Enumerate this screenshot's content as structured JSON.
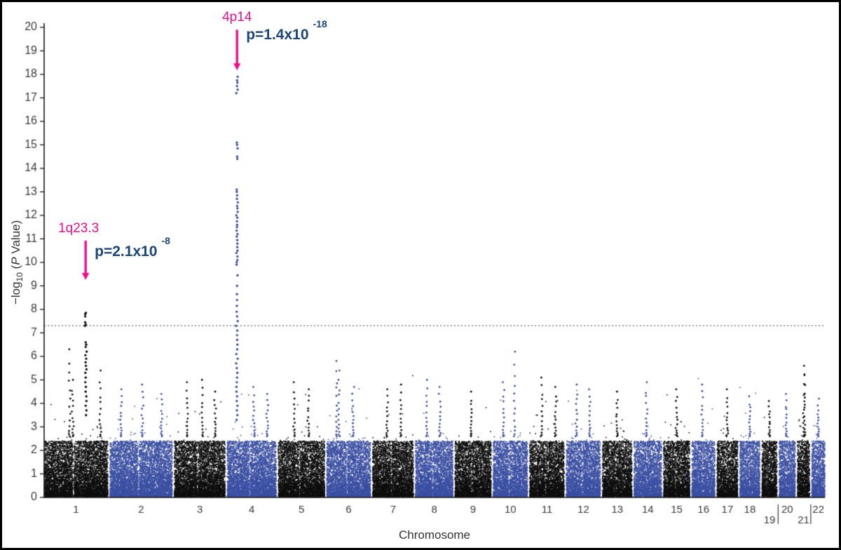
{
  "axes": {
    "x_title": "Chromosome",
    "y_title_parts": {
      "prefix": "−log",
      "sub": "10",
      "mid": " (",
      "italic": "P",
      "suffix": " Value)"
    }
  },
  "annotations": [
    {
      "locus": "4p14",
      "p_base": "p=1.4x10",
      "p_exponent": "-18"
    },
    {
      "locus": "1q23.3",
      "p_base": "p=2.1x10",
      "p_exponent": "-8"
    }
  ],
  "colors": {
    "odd_chr": "#0e0e0e",
    "even_chr": "#3b4fa2",
    "highlight": "#ec108f",
    "pvalue_text": "#1c4577",
    "axis_text": "#3a3a3a",
    "axis_line": "#1a1a1a",
    "threshold_line": "#6a6a6a",
    "background": "#ffffff",
    "frame": "#000000"
  },
  "chart_data": {
    "type": "scatter",
    "title": "",
    "xlabel": "Chromosome",
    "ylabel": "-log10 (P Value)",
    "ylim": [
      0,
      20
    ],
    "y_ticks": [
      0,
      1,
      2,
      3,
      4,
      5,
      6,
      7,
      8,
      9,
      10,
      11,
      12,
      13,
      14,
      15,
      16,
      17,
      18,
      19,
      20
    ],
    "threshold": 7.3,
    "grid": false,
    "legend": false,
    "chromosomes": [
      {
        "label": "1",
        "size": 249,
        "spikes": [
          [
            0.4,
            6.3
          ],
          [
            0.45,
            5.0
          ],
          [
            0.88,
            5.4
          ]
        ]
      },
      {
        "label": "2",
        "size": 243,
        "spikes": [
          [
            0.18,
            4.6
          ],
          [
            0.52,
            4.8
          ],
          [
            0.83,
            4.4
          ]
        ]
      },
      {
        "label": "3",
        "size": 198,
        "spikes": [
          [
            0.25,
            4.9
          ],
          [
            0.55,
            5.0
          ],
          [
            0.8,
            4.5
          ]
        ]
      },
      {
        "label": "4",
        "size": 191,
        "spikes": [
          [
            0.55,
            4.7
          ],
          [
            0.82,
            4.4
          ]
        ]
      },
      {
        "label": "5",
        "size": 181,
        "spikes": [
          [
            0.35,
            4.9
          ],
          [
            0.65,
            4.6
          ]
        ]
      },
      {
        "label": "6",
        "size": 171,
        "spikes": [
          [
            0.22,
            5.8
          ],
          [
            0.28,
            5.4
          ],
          [
            0.6,
            4.7
          ]
        ]
      },
      {
        "label": "7",
        "size": 159,
        "spikes": [
          [
            0.35,
            4.6
          ],
          [
            0.7,
            4.8
          ]
        ]
      },
      {
        "label": "8",
        "size": 146,
        "spikes": [
          [
            0.3,
            5.0
          ],
          [
            0.65,
            4.7
          ]
        ]
      },
      {
        "label": "9",
        "size": 141,
        "spikes": [
          [
            0.45,
            4.5
          ]
        ]
      },
      {
        "label": "10",
        "size": 134,
        "spikes": [
          [
            0.3,
            4.9
          ],
          [
            0.62,
            6.2
          ]
        ]
      },
      {
        "label": "11",
        "size": 135,
        "spikes": [
          [
            0.35,
            5.1
          ],
          [
            0.75,
            4.7
          ]
        ]
      },
      {
        "label": "12",
        "size": 133,
        "spikes": [
          [
            0.3,
            4.8
          ],
          [
            0.68,
            4.6
          ]
        ]
      },
      {
        "label": "13",
        "size": 115,
        "spikes": [
          [
            0.5,
            4.5
          ]
        ]
      },
      {
        "label": "14",
        "size": 107,
        "spikes": [
          [
            0.45,
            4.9
          ]
        ]
      },
      {
        "label": "15",
        "size": 102,
        "spikes": [
          [
            0.5,
            4.6
          ]
        ]
      },
      {
        "label": "16",
        "size": 90,
        "spikes": [
          [
            0.45,
            4.8
          ]
        ]
      },
      {
        "label": "17",
        "size": 81,
        "spikes": [
          [
            0.5,
            4.6
          ]
        ]
      },
      {
        "label": "18",
        "size": 78,
        "spikes": [
          [
            0.5,
            4.3
          ]
        ]
      },
      {
        "label": "19",
        "size": 59,
        "spikes": [
          [
            0.5,
            4.1
          ]
        ]
      },
      {
        "label": "20",
        "size": 63,
        "spikes": [
          [
            0.45,
            4.4
          ]
        ]
      },
      {
        "label": "21",
        "size": 48,
        "spikes": [
          [
            0.5,
            5.6
          ],
          [
            0.6,
            5.2
          ]
        ]
      },
      {
        "label": "22",
        "size": 51,
        "spikes": [
          [
            0.5,
            4.2
          ]
        ]
      }
    ],
    "top_hits": [
      {
        "chr": 4,
        "fraction": 0.2,
        "locus": "4p14",
        "p_value": "1.4x10-18",
        "points": [
          17.9,
          17.75,
          17.65,
          17.5,
          17.35,
          17.2,
          15.1,
          15.0,
          14.85,
          14.5,
          14.4,
          13.1,
          13.0,
          12.85,
          12.7,
          12.55,
          12.4,
          12.3,
          12.15,
          12.0,
          11.9,
          11.75,
          11.6,
          11.5,
          11.35,
          11.2,
          11.1,
          10.95,
          10.8,
          10.65,
          10.5,
          10.4,
          10.25,
          10.1,
          10.0,
          9.9,
          9.45,
          9.0,
          8.65,
          8.4,
          8.15,
          7.9,
          7.7,
          7.5,
          7.3,
          7.1,
          6.9,
          6.7,
          6.5,
          6.3,
          6.1,
          5.9,
          5.7,
          5.5,
          5.3,
          5.1,
          4.9,
          4.7,
          4.5,
          4.3,
          4.1,
          3.9,
          3.7,
          3.5,
          3.3
        ]
      },
      {
        "chr": 1,
        "fraction": 0.65,
        "locus": "1q23.3",
        "p_value": "2.1x10-8",
        "points": [
          7.85,
          7.8,
          7.7,
          7.45,
          7.35,
          7.3,
          6.6,
          6.5,
          6.4,
          6.2,
          6.05,
          5.9,
          5.75,
          5.6,
          5.45,
          5.3,
          5.1,
          4.9,
          4.7,
          4.5,
          4.3,
          4.1,
          3.9,
          3.7,
          3.5
        ]
      }
    ]
  }
}
